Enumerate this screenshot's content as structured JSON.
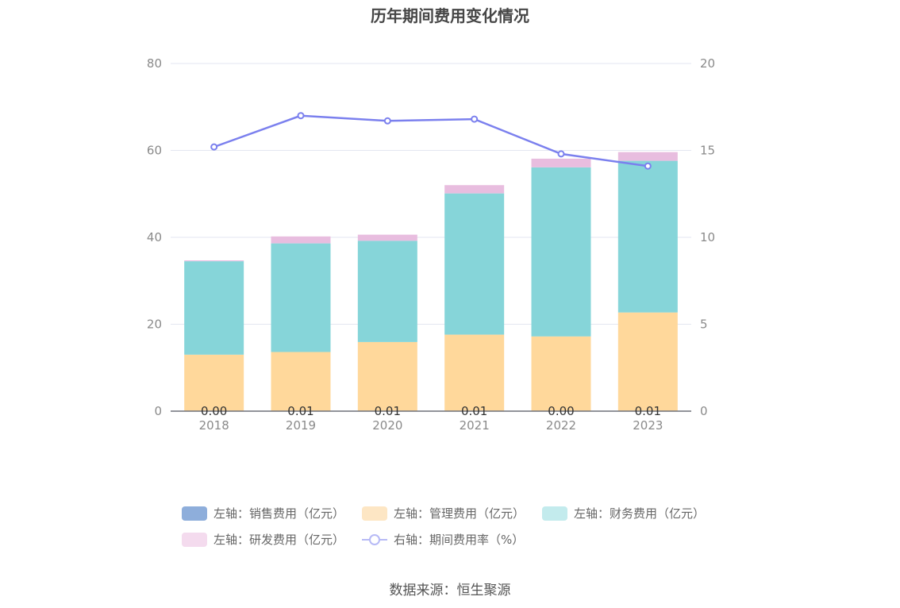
{
  "title": "历年期间费用变化情况",
  "source": "数据来源：恒生聚源",
  "legend": {
    "sales": "左轴：销售费用（亿元）",
    "admin": "左轴：管理费用（亿元）",
    "finance": "左轴：财务费用（亿元）",
    "rd": "左轴：研发费用（亿元）",
    "rate": "右轴：期间费用率（%）"
  },
  "colors": {
    "sales": "#8eaedb",
    "admin": "#ffd89b",
    "finance": "#86d5d9",
    "rd": "#e8bddf",
    "rate": "#7b80ee",
    "legend_admin": "#fde6c4",
    "legend_finance": "#c3ebed",
    "legend_rd": "#f4dbee",
    "legend_rate": "#b7baf6"
  },
  "chart_data": {
    "type": "bar",
    "stacked": true,
    "categories": [
      "2018",
      "2019",
      "2020",
      "2021",
      "2022",
      "2023"
    ],
    "series": [
      {
        "name": "左轴：销售费用（亿元）",
        "axis": "left",
        "values": [
          0.0,
          0.01,
          0.01,
          0.01,
          0.0,
          0.01
        ]
      },
      {
        "name": "左轴：管理费用（亿元）",
        "axis": "left",
        "values": [
          13.0,
          13.6,
          15.9,
          17.6,
          17.2,
          22.7
        ]
      },
      {
        "name": "左轴：财务费用（亿元）",
        "axis": "left",
        "values": [
          21.5,
          25.0,
          23.3,
          32.5,
          38.9,
          34.9
        ]
      },
      {
        "name": "左轴：研发费用（亿元）",
        "axis": "left",
        "values": [
          0.2,
          1.6,
          1.4,
          1.9,
          2.0,
          2.0
        ]
      },
      {
        "name": "右轴：期间费用率（%）",
        "axis": "right",
        "type": "line",
        "values": [
          15.2,
          17.0,
          16.7,
          16.8,
          14.8,
          14.1
        ]
      }
    ],
    "data_labels": [
      "0.00",
      "0.01",
      "0.01",
      "0.01",
      "0.00",
      "0.01"
    ],
    "y_left": {
      "ylim": [
        0,
        80
      ],
      "ticks": [
        "0",
        "20",
        "40",
        "60",
        "80"
      ]
    },
    "y_right": {
      "ylim": [
        0,
        20
      ],
      "ticks": [
        "0",
        "5",
        "10",
        "15",
        "20"
      ]
    },
    "grid": true,
    "legend_position": "bottom"
  }
}
